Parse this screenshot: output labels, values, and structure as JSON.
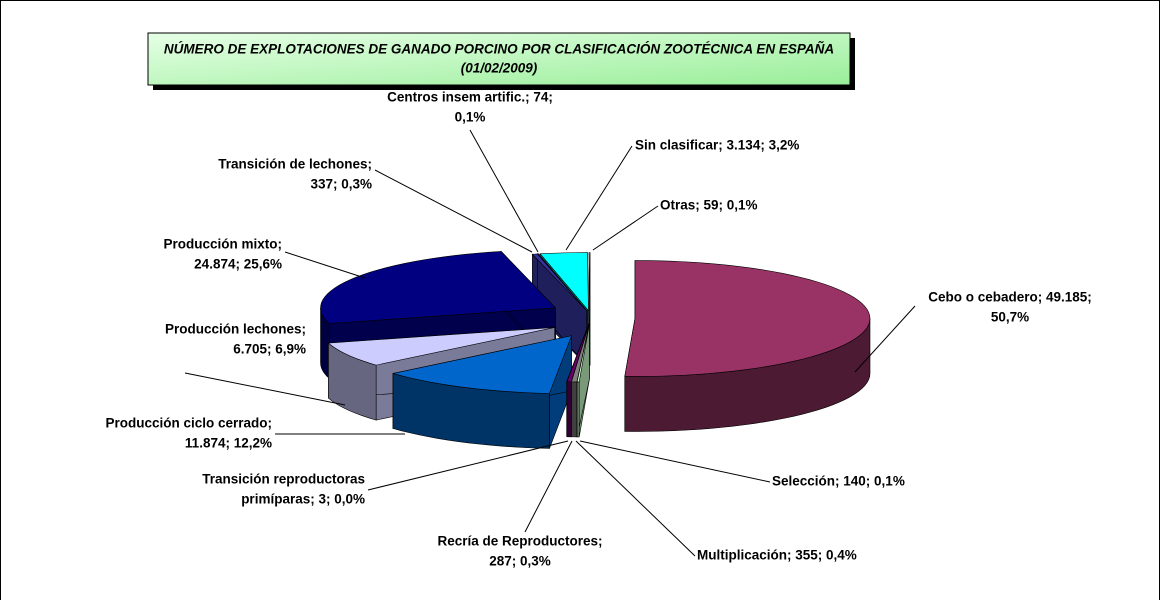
{
  "chart_data": {
    "type": "pie3d",
    "title": "NÚMERO DE EXPLOTACIONES DE GANADO PORCINO POR CLASIFICACIÓN ZOOTÉCNICA EN ESPAÑA",
    "subtitle": "(01/02/2009)",
    "values": [
      49185,
      140,
      355,
      287,
      3,
      11874,
      6705,
      24874,
      337,
      74,
      3134,
      59
    ],
    "value_labels": [
      [
        "Cebo o cebadero; 49.185;",
        "50,7%"
      ],
      [
        "Selección; 140; 0,1%"
      ],
      [
        "Multiplicación; 355; 0,4%"
      ],
      [
        "Recría de Reproductores;",
        "287; 0,3%"
      ],
      [
        "Transición reproductoras",
        "primíparas; 3; 0,0%"
      ],
      [
        "Producción ciclo cerrado;",
        "11.874; 12,2%"
      ],
      [
        "Producción  lechones;",
        "6.705; 6,9%"
      ],
      [
        "Producción  mixto;",
        "24.874; 25,6%"
      ],
      [
        "Transición de lechones;",
        "337; 0,3%"
      ],
      [
        "Centros insem artific.; 74;",
        "0,1%"
      ],
      [
        "Sin clasificar; 3.134; 3,2%"
      ],
      [
        "Otras; 59; 0,1%"
      ]
    ],
    "colors": [
      "#993366",
      "#ccffcc",
      "#808080",
      "#660066",
      "#ff8080",
      "#0066cc",
      "#ccccff",
      "#000080",
      "#333399",
      "#990099",
      "#00ffff",
      "#ffffff"
    ]
  }
}
